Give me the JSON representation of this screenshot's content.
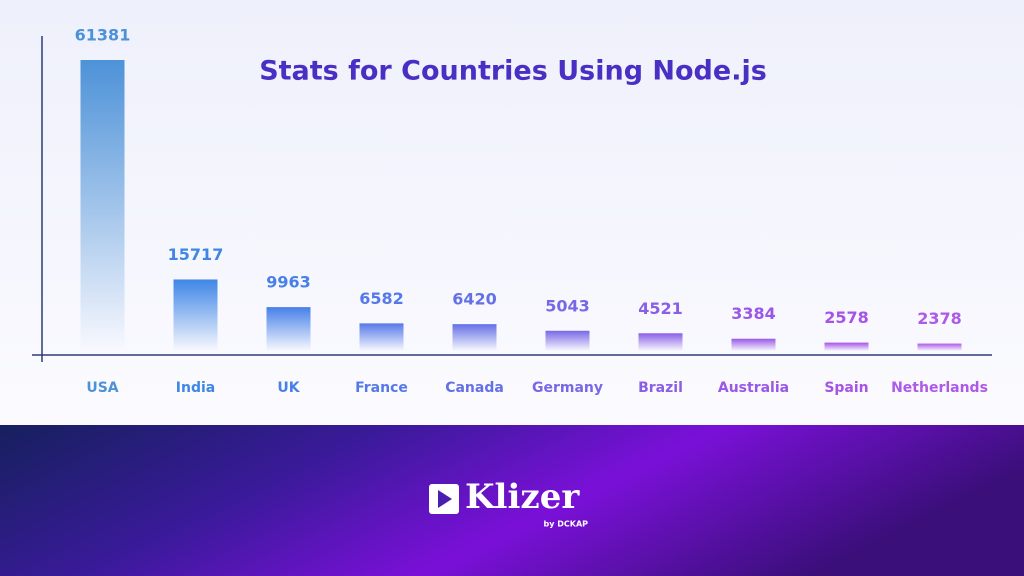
{
  "chart_data": {
    "type": "bar",
    "title": "Stats for Countries Using Node.js",
    "categories": [
      "USA",
      "India",
      "UK",
      "France",
      "Canada",
      "Germany",
      "Brazil",
      "Australia",
      "Spain",
      "Netherlands"
    ],
    "values": [
      61381,
      15717,
      9963,
      6582,
      6420,
      5043,
      4521,
      3384,
      2578,
      2378
    ],
    "colors": [
      "#4d92d8",
      "#3f86e6",
      "#4680e8",
      "#5579e8",
      "#6470e6",
      "#7868e6",
      "#8a5fe6",
      "#9a58e6",
      "#a653e6",
      "#ae5ae8"
    ]
  },
  "footer": {
    "brand": "Klizer",
    "tagline": "by DCKAP"
  }
}
